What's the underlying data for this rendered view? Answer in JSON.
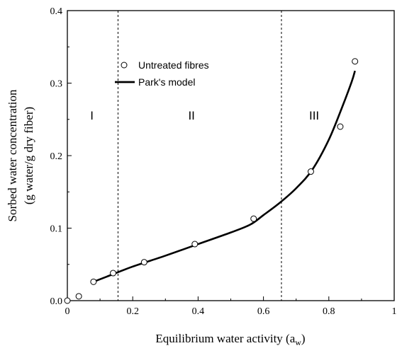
{
  "chart_data": {
    "type": "scatter",
    "title": "",
    "xlabel": "Equilibrium water activity (a",
    "xlabel_sub": "w",
    "xlabel_close": ")",
    "ylabel_line1": "Sorbed water concentration",
    "ylabel_line2": "(g water/g dry fiber)",
    "xlim": [
      0,
      1
    ],
    "ylim": [
      0,
      0.4
    ],
    "x_ticks": [
      0,
      0.2,
      0.4,
      0.6,
      0.8,
      1
    ],
    "x_tick_labels": [
      "0",
      "0.2",
      "0.4",
      "0.6",
      "0.8",
      "1"
    ],
    "y_ticks": [
      0,
      0.1,
      0.2,
      0.3,
      0.4
    ],
    "y_tick_labels": [
      "0.0",
      "0.1",
      "0.2",
      "0.3",
      "0.4"
    ],
    "grid": false,
    "legend_position": "top-left",
    "series": [
      {
        "name": "Untreated fibres",
        "kind": "markers",
        "marker": "open-circle",
        "x": [
          0.0,
          0.035,
          0.08,
          0.14,
          0.235,
          0.39,
          0.57,
          0.745,
          0.835,
          0.88
        ],
        "y": [
          0.0,
          0.006,
          0.026,
          0.038,
          0.053,
          0.078,
          0.113,
          0.178,
          0.24,
          0.33
        ]
      },
      {
        "name": "Park's model",
        "kind": "line",
        "x": [
          0.08,
          0.12,
          0.2,
          0.3,
          0.4,
          0.5,
          0.56,
          0.6,
          0.65,
          0.7,
          0.75,
          0.8,
          0.84,
          0.87,
          0.88
        ],
        "y": [
          0.026,
          0.033,
          0.047,
          0.062,
          0.078,
          0.094,
          0.105,
          0.118,
          0.135,
          0.155,
          0.181,
          0.222,
          0.266,
          0.302,
          0.317
        ]
      }
    ],
    "vlines": [
      {
        "x": 0.155,
        "style": "dashed"
      },
      {
        "x": 0.655,
        "style": "dashed"
      }
    ],
    "annotations": [
      {
        "text": "I",
        "x": 0.075,
        "y": 0.25
      },
      {
        "text": "II",
        "x": 0.38,
        "y": 0.25
      },
      {
        "text": "III",
        "x": 0.755,
        "y": 0.25
      }
    ]
  }
}
